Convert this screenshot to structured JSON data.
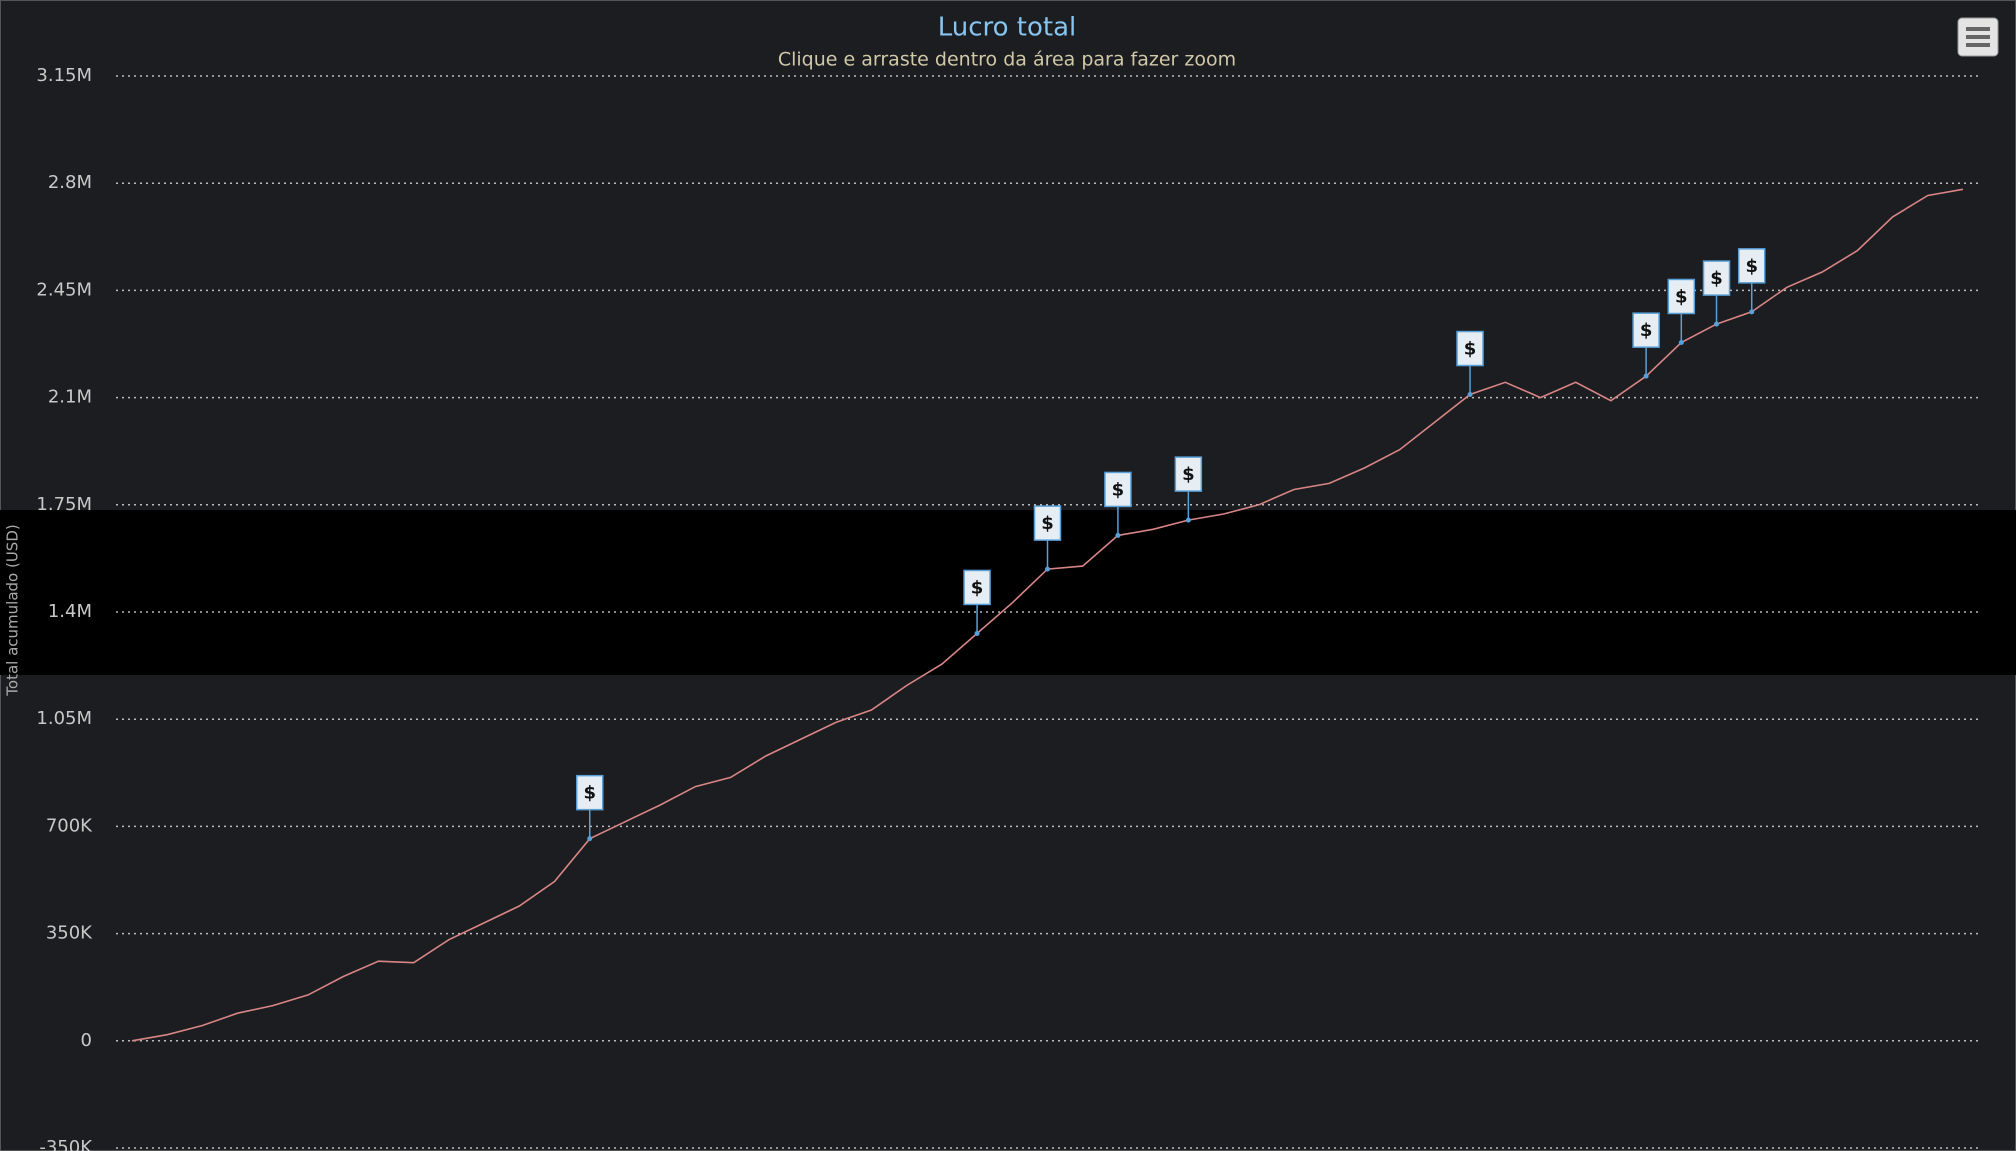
{
  "chart_data": {
    "type": "line",
    "title": "Lucro total",
    "subtitle": "Clique e arraste dentro da área para fazer zoom",
    "y_label": "Total acumulado (USD)",
    "color": "#d98585",
    "values": [
      0,
      20000,
      50000,
      90000,
      115000,
      150000,
      210000,
      260000,
      255000,
      330000,
      385000,
      440000,
      520000,
      660000,
      715000,
      770000,
      830000,
      860000,
      930000,
      985000,
      1040000,
      1080000,
      1160000,
      1230000,
      1330000,
      1430000,
      1540000,
      1550000,
      1650000,
      1670000,
      1700000,
      1720000,
      1750000,
      1800000,
      1820000,
      1870000,
      1930000,
      2020000,
      2110000,
      2150000,
      2100000,
      2150000,
      2090000,
      2170000,
      2280000,
      2340000,
      2380000,
      2460000,
      2510000,
      2580000,
      2690000,
      2760000,
      2780000
    ],
    "flags": [
      {
        "index": 13,
        "title": "$"
      },
      {
        "index": 24,
        "title": "$"
      },
      {
        "index": 26,
        "title": "$"
      },
      {
        "index": 28,
        "title": "$"
      },
      {
        "index": 30,
        "title": "$"
      },
      {
        "index": 38,
        "title": "$"
      },
      {
        "index": 43,
        "title": "$"
      },
      {
        "index": 44,
        "title": "$"
      },
      {
        "index": 45,
        "title": "$"
      },
      {
        "index": 46,
        "title": "$"
      }
    ],
    "ylim": [
      -350000,
      3150000
    ],
    "yticks": [
      {
        "value": -350000,
        "label": "-350K"
      },
      0,
      {
        "value": 350000,
        "label": "350K"
      },
      {
        "value": 700000,
        "label": "700K"
      },
      {
        "value": 1050000,
        "label": "1.05M"
      },
      {
        "value": 1400000,
        "label": "1.4M"
      },
      {
        "value": 1750000,
        "label": "1.75M"
      },
      {
        "value": 2100000,
        "label": "2.1M"
      },
      {
        "value": 2450000,
        "label": "2.45M"
      },
      {
        "value": 2800000,
        "label": "2.8M"
      },
      {
        "value": 3150000,
        "label": "3.15M"
      }
    ],
    "grid": true
  }
}
